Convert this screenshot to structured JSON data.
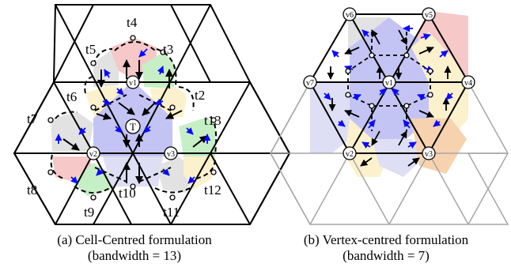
{
  "captions": {
    "a": {
      "main": "(a) Cell-Centred formulation",
      "sub": "(bandwidth = 13)"
    },
    "b": {
      "main": "(b) Vertex-centred formulation",
      "sub": "(bandwidth = 7)"
    }
  },
  "left": {
    "vertex_labels": [
      "v1",
      "v2",
      "v3"
    ],
    "center_label": "T",
    "triangle_labels": [
      "t2",
      "t3",
      "t4",
      "t5",
      "t6",
      "t7",
      "t8",
      "t9",
      "t10",
      "t11",
      "t12",
      "t13"
    ]
  },
  "right": {
    "vertex_labels": [
      "v1",
      "v2",
      "v3",
      "v4",
      "v5",
      "v6",
      "v7"
    ]
  },
  "colors": {
    "blue": "#c4c4f4",
    "lavender": "#dedef4",
    "red": "#f6c8c8",
    "green": "#c6efc6",
    "yellow": "#fbf1cc",
    "orange": "#f7d2ae",
    "gray": "#e2e2e2",
    "arrow_blue": "#0a0aff",
    "grid_gray": "#a6a6a6"
  }
}
